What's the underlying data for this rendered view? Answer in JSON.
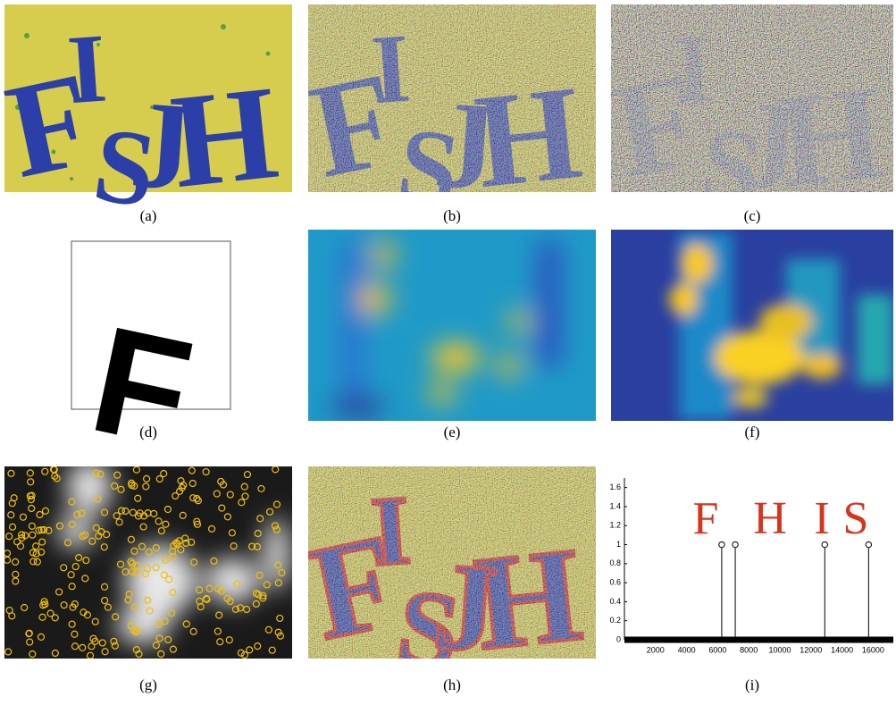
{
  "panels": [
    {
      "label": "(a)"
    },
    {
      "label": "(b)"
    },
    {
      "label": "(c)"
    },
    {
      "label": "(d)"
    },
    {
      "label": "(e)"
    },
    {
      "label": "(f)"
    },
    {
      "label": "(g)"
    },
    {
      "label": "(h)"
    },
    {
      "label": "(i)"
    }
  ],
  "chart_data": {
    "type": "stem",
    "x": [
      6260,
      7130,
      12890,
      15710
    ],
    "values": [
      1,
      1,
      1,
      1
    ],
    "xlim": [
      0,
      17300
    ],
    "ylim": [
      0,
      1.7
    ],
    "xticks": [
      2000,
      4000,
      6000,
      8000,
      10000,
      12000,
      14000,
      16000
    ],
    "yticks": [
      0,
      0.2,
      0.4,
      0.6,
      0.8,
      1,
      1.2,
      1.4,
      1.6
    ],
    "color": "#000000",
    "annotations": [
      "F",
      "H",
      "I",
      "S"
    ],
    "annotation_color": "#d8341c"
  }
}
